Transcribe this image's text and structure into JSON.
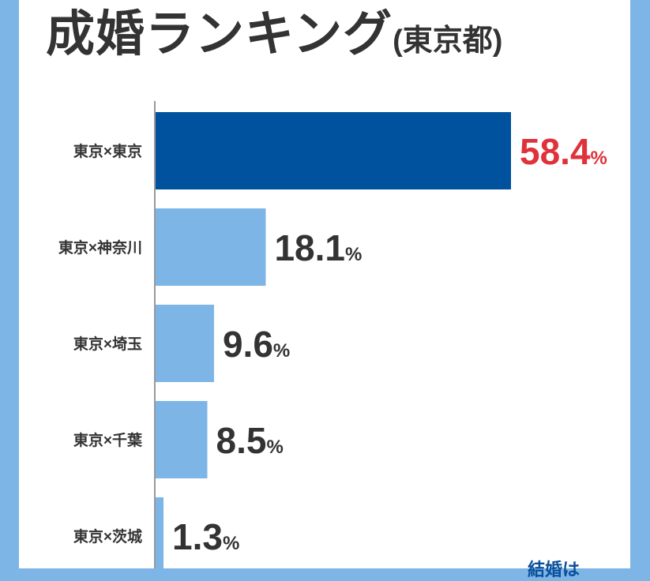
{
  "title": "成婚ランキング",
  "title_sub": "(東京都)",
  "footer_text": "結婚は",
  "chart_data": {
    "type": "bar",
    "orientation": "horizontal",
    "title": "成婚ランキング(東京都)",
    "categories": [
      "東京×東京",
      "東京×神奈川",
      "東京×埼玉",
      "東京×千葉",
      "東京×茨城"
    ],
    "values": [
      58.4,
      18.1,
      9.6,
      8.5,
      1.3
    ],
    "unit": "%",
    "xlim": [
      0,
      58.4
    ],
    "highlight_index": 0,
    "colors": {
      "highlight_bar": "#00529f",
      "bar": "#7db5e6",
      "highlight_label": "#e0323a",
      "label": "#333333"
    }
  }
}
